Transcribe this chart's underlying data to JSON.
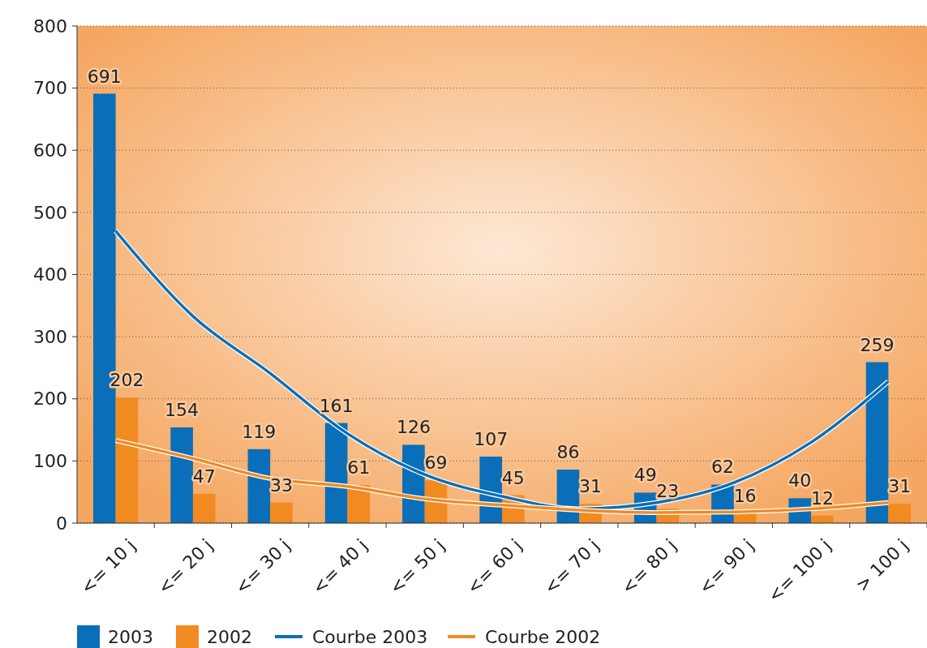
{
  "chart_data": {
    "type": "bar",
    "categories": [
      "<= 10 j",
      "<= 20 j",
      "<= 30 j",
      "<= 40 j",
      "<= 50 j",
      "<= 60 j",
      "<= 70 j",
      "<= 80 j",
      "<= 90 j",
      "<= 100 j",
      "> 100 j"
    ],
    "series": [
      {
        "name": "2003",
        "color": "#0a6fb8",
        "values": [
          691,
          154,
          119,
          161,
          126,
          107,
          86,
          49,
          62,
          40,
          259
        ],
        "value_labels": [
          "691",
          "154",
          "119",
          "161",
          "126",
          "107",
          "86",
          "49",
          "62",
          "40",
          "259"
        ]
      },
      {
        "name": "2002",
        "color": "#f28a22",
        "values": [
          202,
          47,
          33,
          61,
          69,
          45,
          31,
          23,
          16,
          12,
          31
        ],
        "value_labels": [
          "202",
          "47",
          "33",
          "61",
          "69",
          "45",
          "31",
          "23",
          "16",
          "12",
          "31"
        ]
      },
      {
        "name": "Courbe 2003",
        "type": "line",
        "color": "#0a6fb8",
        "values": [
          470,
          333,
          241,
          144,
          78,
          43,
          23,
          33,
          65,
          130,
          228
        ]
      },
      {
        "name": "Courbe 2002",
        "type": "line",
        "color": "#f28a22",
        "values": [
          133,
          104,
          72,
          59,
          39,
          29,
          21,
          17,
          18,
          23,
          33
        ]
      }
    ],
    "ylim": [
      0,
      800
    ],
    "yticks": [
      0,
      100,
      200,
      300,
      400,
      500,
      600,
      700,
      800
    ],
    "grid": "y",
    "legend": "bottom",
    "line_style": "solid",
    "marker": "none"
  }
}
